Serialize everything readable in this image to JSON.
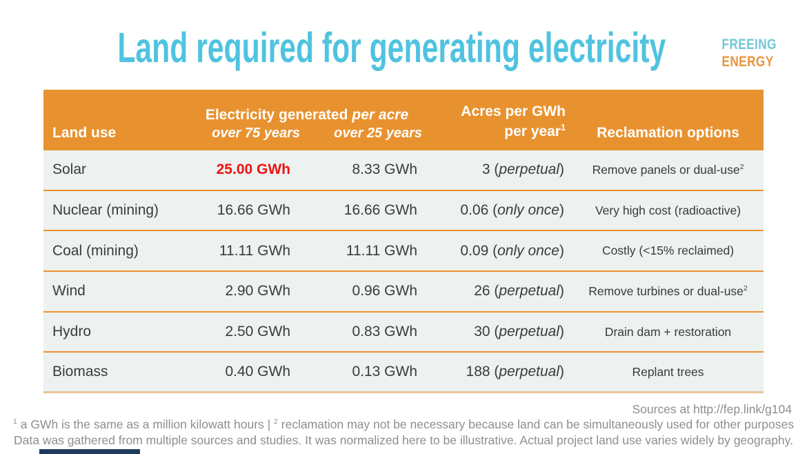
{
  "colors": {
    "title": "#4fc3e0",
    "logo_blue": "#72c7d6",
    "logo_orange": "#e9953c",
    "header_bg": "#e8922f",
    "row_bg": "#edf1ef",
    "row_border": "#e8922f",
    "highlight_red": "#ec1313",
    "text_dark": "#3b3b3b",
    "footer_gray": "#8e8e8e"
  },
  "page": {
    "title": "Land required for generating electricity"
  },
  "logo": {
    "line1": "FREEING",
    "line2": "ENERGY"
  },
  "table": {
    "header": {
      "land_use": "Land use",
      "electricity_group": "Electricity generated",
      "electricity_group_italic": "per acre",
      "over_75": "over 75 years",
      "over_25": "over 25 years",
      "acres_line1": "Acres per GWh",
      "acres_line2": "per year",
      "acres_superscript": "1",
      "reclamation": "Reclamation options"
    },
    "rows": [
      {
        "land_use": "Solar",
        "gwh_75": "25.00 GWh",
        "gwh_25": "8.33 GWh",
        "acres_value": "3",
        "acres_note": "perpetual",
        "reclamation": "Remove panels or dual-use",
        "reclamation_superscript": "2",
        "highlight_75": true
      },
      {
        "land_use": "Nuclear (mining)",
        "gwh_75": "16.66 GWh",
        "gwh_25": "16.66 GWh",
        "acres_value": "0.06",
        "acres_note": "only once",
        "reclamation": "Very high cost (radioactive)"
      },
      {
        "land_use": "Coal (mining)",
        "gwh_75": "11.11 GWh",
        "gwh_25": "11.11 GWh",
        "acres_value": "0.09",
        "acres_note": "only once",
        "reclamation": "Costly (<15% reclaimed)"
      },
      {
        "land_use": "Wind",
        "gwh_75": "2.90 GWh",
        "gwh_25": "0.96 GWh",
        "acres_value": "26",
        "acres_note": "perpetual",
        "reclamation": "Remove turbines or dual-use",
        "reclamation_superscript": "2"
      },
      {
        "land_use": "Hydro",
        "gwh_75": "2.50 GWh",
        "gwh_25": "0.83 GWh",
        "acres_value": "30",
        "acres_note": "perpetual",
        "reclamation": "Drain dam + restoration"
      },
      {
        "land_use": "Biomass",
        "gwh_75": "0.40 GWh",
        "gwh_25": "0.13 GWh",
        "acres_value": "188",
        "acres_note": "perpetual",
        "reclamation": "Replant trees"
      }
    ]
  },
  "footer": {
    "sources": "Sources at http://fep.link/g104",
    "footnote_sup_1": "1",
    "footnote_part_1": " a GWh is the same as a million kilowatt hours | ",
    "footnote_sup_2": "2",
    "footnote_part_2": " reclamation may not be necessary because land can be simultaneously used for other purposes",
    "footnote_line_2": "Data was gathered from multiple sources and studies. It was normalized here to be illustrative. Actual project land use varies widely by geography."
  },
  "chart_data": {
    "type": "table",
    "title": "Land required for generating electricity",
    "columns": [
      "Land use",
      "Electricity generated per acre over 75 years",
      "Electricity generated per acre over 25 years",
      "Acres per GWh per year",
      "Reclamation options"
    ],
    "rows": [
      [
        "Solar",
        "25.00 GWh",
        "8.33 GWh",
        "3 (perpetual)",
        "Remove panels or dual-use"
      ],
      [
        "Nuclear (mining)",
        "16.66 GWh",
        "16.66 GWh",
        "0.06 (only once)",
        "Very high cost (radioactive)"
      ],
      [
        "Coal (mining)",
        "11.11 GWh",
        "11.11 GWh",
        "0.09 (only once)",
        "Costly (<15% reclaimed)"
      ],
      [
        "Wind",
        "2.90 GWh",
        "0.96 GWh",
        "26 (perpetual)",
        "Remove turbines or dual-use"
      ],
      [
        "Hydro",
        "2.50 GWh",
        "0.83 GWh",
        "30 (perpetual)",
        "Drain dam + restoration"
      ],
      [
        "Biomass",
        "0.40 GWh",
        "0.13 GWh",
        "188 (perpetual)",
        "Replant trees"
      ]
    ],
    "notes": "Solar 25.00 GWh highlighted in red; GWh = one million kilowatt hours"
  }
}
